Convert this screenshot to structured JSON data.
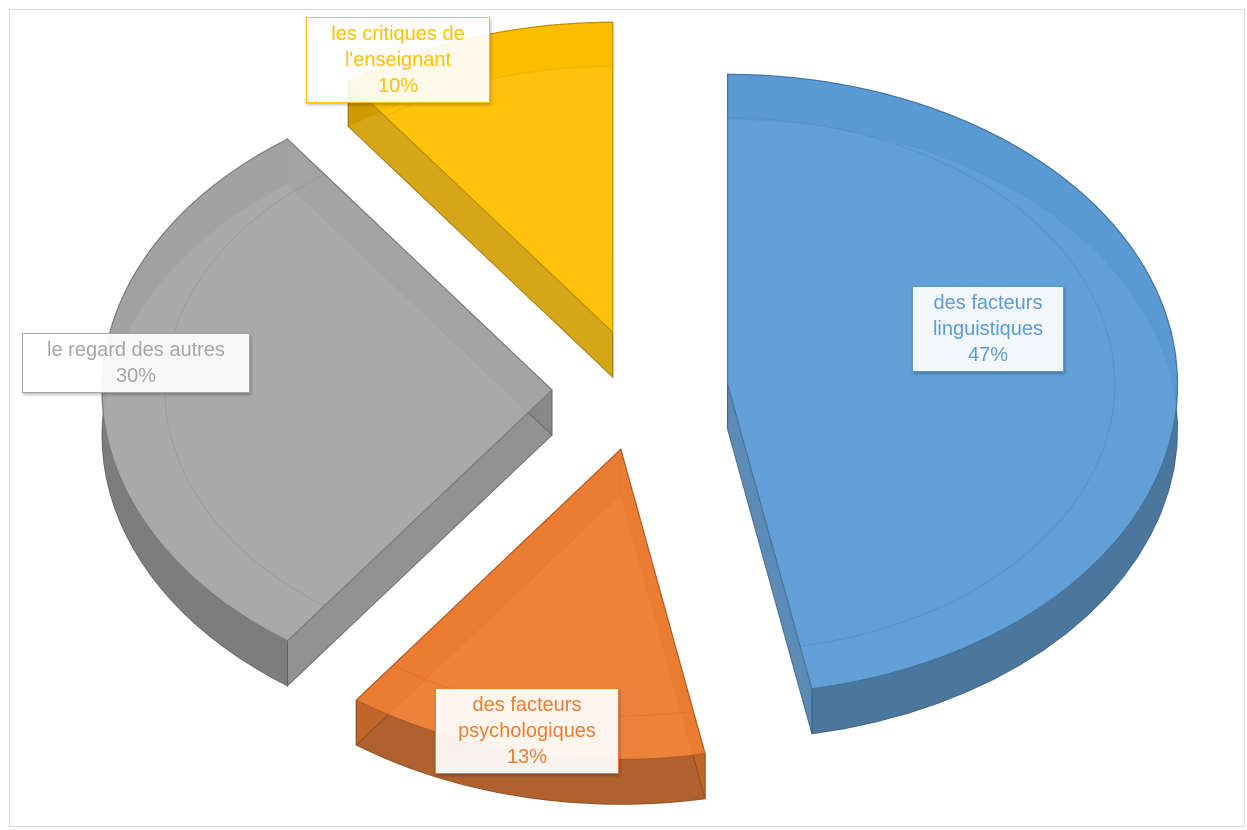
{
  "chart_data": {
    "type": "pie",
    "title": "",
    "style": "3d-exploded",
    "legend": "none",
    "slices": [
      {
        "label": "des facteurs linguistiques",
        "label_lines": [
          "des facteurs",
          "linguistiques"
        ],
        "percent_label": "47%",
        "value": 47,
        "color": "#5B9BD5"
      },
      {
        "label": "des facteurs psychologiques",
        "label_lines": [
          "des facteurs",
          "psychologiques"
        ],
        "percent_label": "13%",
        "value": 13,
        "color": "#ED7D31"
      },
      {
        "label": "le regard des autres",
        "label_lines": [
          "le regard des autres"
        ],
        "percent_label": "30%",
        "value": 30,
        "color": "#A5A5A5"
      },
      {
        "label": "les critiques de l'enseignant",
        "label_lines": [
          "les critiques de",
          "l'enseignant"
        ],
        "percent_label": "10%",
        "value": 10,
        "color": "#FFC000"
      }
    ]
  }
}
